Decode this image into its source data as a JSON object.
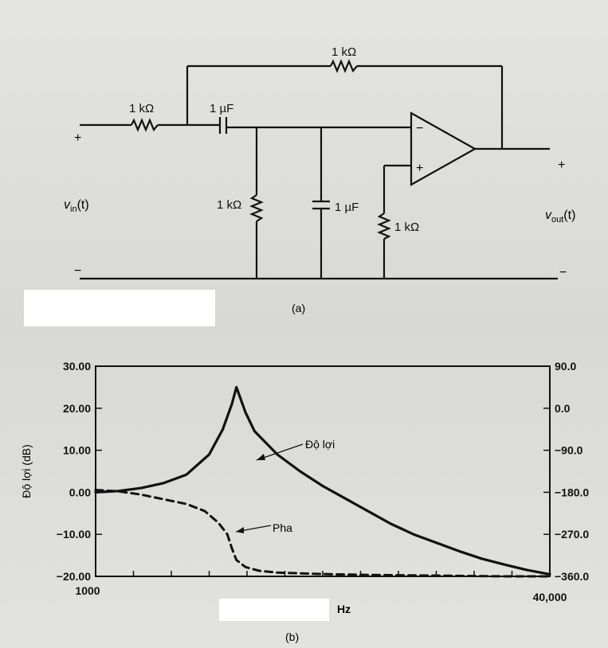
{
  "figure_a": {
    "caption": "(a)",
    "components": {
      "r_feedback": "1 kΩ",
      "r_input": "1 kΩ",
      "c_series": "1 µF",
      "r_shunt": "1 kΩ",
      "c_shunt": "1 µF",
      "r_noninv": "1 kΩ"
    },
    "input_label": "v",
    "input_sub": "in",
    "input_arg": "(t)",
    "output_label": "v",
    "output_sub": "out",
    "output_arg": "(t)",
    "plus_in": "+",
    "minus_in": "−",
    "plus_out": "+",
    "minus_out": "−",
    "opamp_minus": "−",
    "opamp_plus": "+"
  },
  "figure_b": {
    "caption": "(b)",
    "chart_data": {
      "type": "line",
      "xlabel": "Hz",
      "ylabel": "Độ lợi (dB)",
      "x_range_labels": [
        "1000",
        "40,000"
      ],
      "left_ylim": [
        -20,
        30
      ],
      "right_ylim": [
        -360,
        90
      ],
      "left_ticks": [
        "30.00",
        "20.00",
        "10.00",
        "0.00",
        "−10.00",
        "−20.00"
      ],
      "right_ticks": [
        "90.0",
        "0.0",
        "−90.0",
        "−180.0",
        "−270.0",
        "−360.0"
      ],
      "series": [
        {
          "name": "Độ lợi",
          "style": "solid",
          "axis": "left",
          "x_frac": [
            0,
            0.05,
            0.1,
            0.15,
            0.2,
            0.25,
            0.28,
            0.3,
            0.31,
            0.33,
            0.35,
            0.4,
            0.45,
            0.5,
            0.55,
            0.6,
            0.65,
            0.7,
            0.75,
            0.8,
            0.85,
            0.9,
            0.95,
            1.0
          ],
          "values": [
            0,
            0.3,
            1,
            2.2,
            4.2,
            9,
            15,
            21,
            25,
            19,
            14.5,
            9,
            5,
            1.5,
            -1.5,
            -4.5,
            -7.5,
            -10,
            -12,
            -14,
            -15.8,
            -17.2,
            -18.5,
            -19.5
          ]
        },
        {
          "name": "Pha",
          "style": "dashed",
          "axis": "right",
          "x_frac": [
            0,
            0.05,
            0.1,
            0.15,
            0.2,
            0.24,
            0.27,
            0.29,
            0.3,
            0.31,
            0.33,
            0.36,
            0.4,
            0.5,
            0.6,
            0.7,
            0.8,
            0.9,
            1.0
          ],
          "values": [
            -175,
            -178,
            -185,
            -195,
            -205,
            -220,
            -245,
            -270,
            -300,
            -325,
            -340,
            -348,
            -352,
            -355,
            -357,
            -358,
            -359,
            -360,
            -360
          ]
        }
      ],
      "annotations": [
        "Độ lợi",
        "Pha"
      ]
    }
  }
}
